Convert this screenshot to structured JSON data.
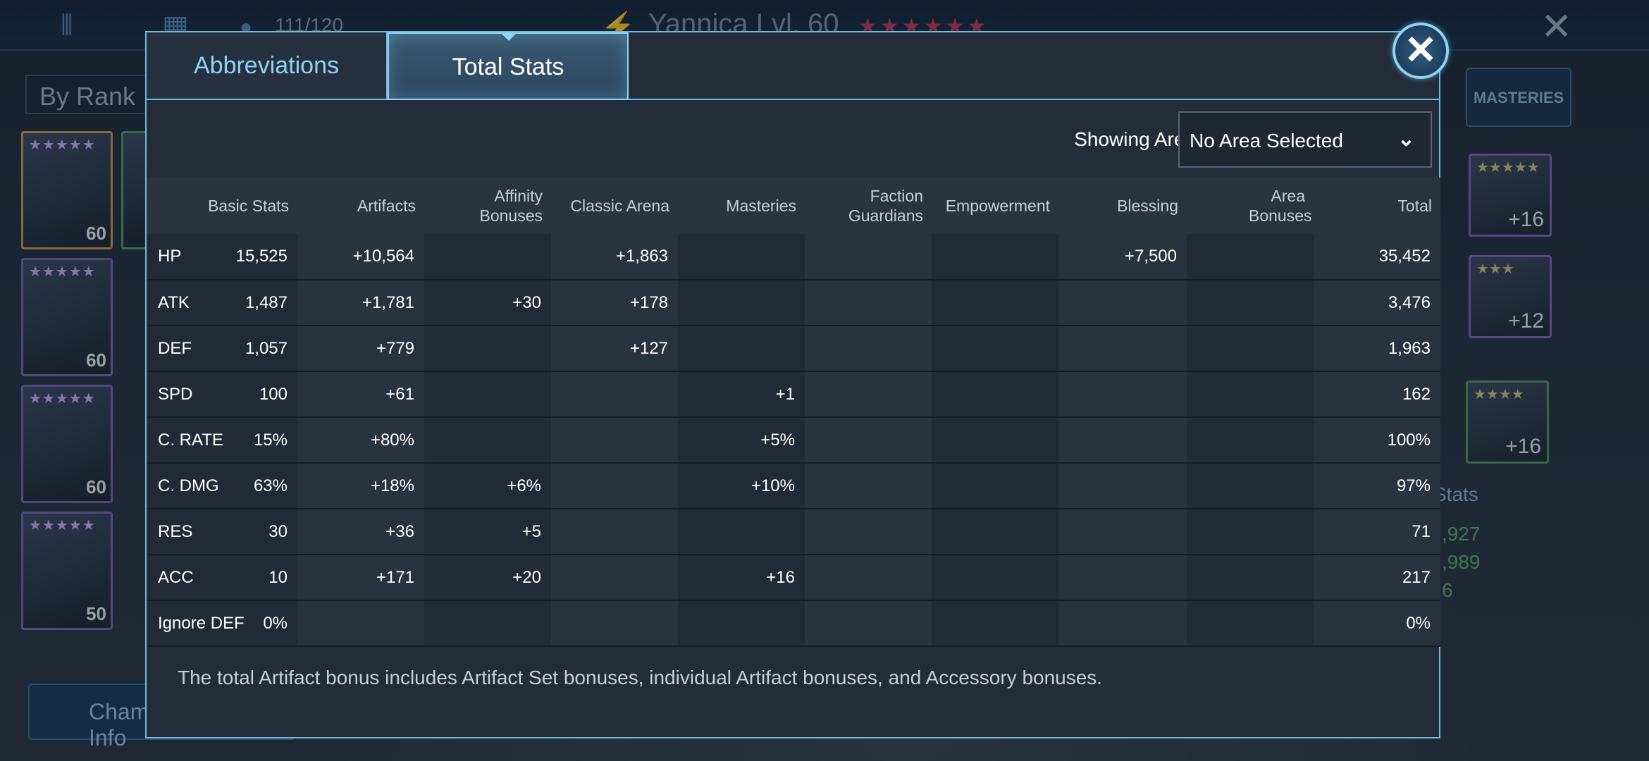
{
  "background": {
    "resource_count": "111/120",
    "hero_name": "Yannica Lvl. 60",
    "hero_stars": "★★★★★★",
    "sort_label": "By Rank",
    "masteries_tab": "MASTERIES",
    "stats_heading": "Stats",
    "stat_values": [
      ",927",
      ",989",
      "6"
    ],
    "champion_button": "Champion Info",
    "champion_levels": [
      "60",
      "60",
      "60",
      "50"
    ],
    "champion_stars": [
      "★★★★★",
      "★★★★★",
      "★★★★★",
      "★★★★★"
    ],
    "artifact_levels": [
      "+16",
      "+12",
      "+16"
    ],
    "artifact_stars": [
      "★★★★★",
      "★★★",
      "★★★★"
    ]
  },
  "modal": {
    "tabs": {
      "abbreviations": "Abbreviations",
      "total_stats": "Total Stats"
    },
    "close_label": "✕",
    "area_label": "Showing Area Bonuses for:",
    "area_selected": "No Area Selected",
    "columns": [
      "Basic Stats",
      "Artifacts",
      "Affinity Bonuses",
      "Classic Arena",
      "Masteries",
      "Faction Guardians",
      "Empowerment",
      "Blessing",
      "Area Bonuses",
      "Total"
    ],
    "rows": [
      {
        "stat": "HP",
        "basic": "15,525",
        "artifacts": "+10,564",
        "affinity": "",
        "arena": "+1,863",
        "masteries": "",
        "faction": "",
        "empowerment": "",
        "blessing": "+7,500",
        "area": "",
        "total": "35,452"
      },
      {
        "stat": "ATK",
        "basic": "1,487",
        "artifacts": "+1,781",
        "affinity": "+30",
        "arena": "+178",
        "masteries": "",
        "faction": "",
        "empowerment": "",
        "blessing": "",
        "area": "",
        "total": "3,476"
      },
      {
        "stat": "DEF",
        "basic": "1,057",
        "artifacts": "+779",
        "affinity": "",
        "arena": "+127",
        "masteries": "",
        "faction": "",
        "empowerment": "",
        "blessing": "",
        "area": "",
        "total": "1,963"
      },
      {
        "stat": "SPD",
        "basic": "100",
        "artifacts": "+61",
        "affinity": "",
        "arena": "",
        "masteries": "+1",
        "faction": "",
        "empowerment": "",
        "blessing": "",
        "area": "",
        "total": "162"
      },
      {
        "stat": "C. RATE",
        "basic": "15%",
        "artifacts": "+80%",
        "affinity": "",
        "arena": "",
        "masteries": "+5%",
        "faction": "",
        "empowerment": "",
        "blessing": "",
        "area": "",
        "total": "100%"
      },
      {
        "stat": "C. DMG",
        "basic": "63%",
        "artifacts": "+18%",
        "affinity": "+6%",
        "arena": "",
        "masteries": "+10%",
        "faction": "",
        "empowerment": "",
        "blessing": "",
        "area": "",
        "total": "97%"
      },
      {
        "stat": "RES",
        "basic": "30",
        "artifacts": "+36",
        "affinity": "+5",
        "arena": "",
        "masteries": "",
        "faction": "",
        "empowerment": "",
        "blessing": "",
        "area": "",
        "total": "71"
      },
      {
        "stat": "ACC",
        "basic": "10",
        "artifacts": "+171",
        "affinity": "+20",
        "arena": "",
        "masteries": "+16",
        "faction": "",
        "empowerment": "",
        "blessing": "",
        "area": "",
        "total": "217"
      },
      {
        "stat": "Ignore DEF",
        "basic": "0%",
        "artifacts": "",
        "affinity": "",
        "arena": "",
        "masteries": "",
        "faction": "",
        "empowerment": "",
        "blessing": "",
        "area": "",
        "total": "0%"
      }
    ],
    "footnote": "The total Artifact bonus includes Artifact Set bonuses, individual Artifact bonuses, and Accessory bonuses."
  },
  "colors": {
    "accent": "#6fb8de",
    "artifact_green": "#6ee05a",
    "total_yellow": "#f6dd78"
  }
}
